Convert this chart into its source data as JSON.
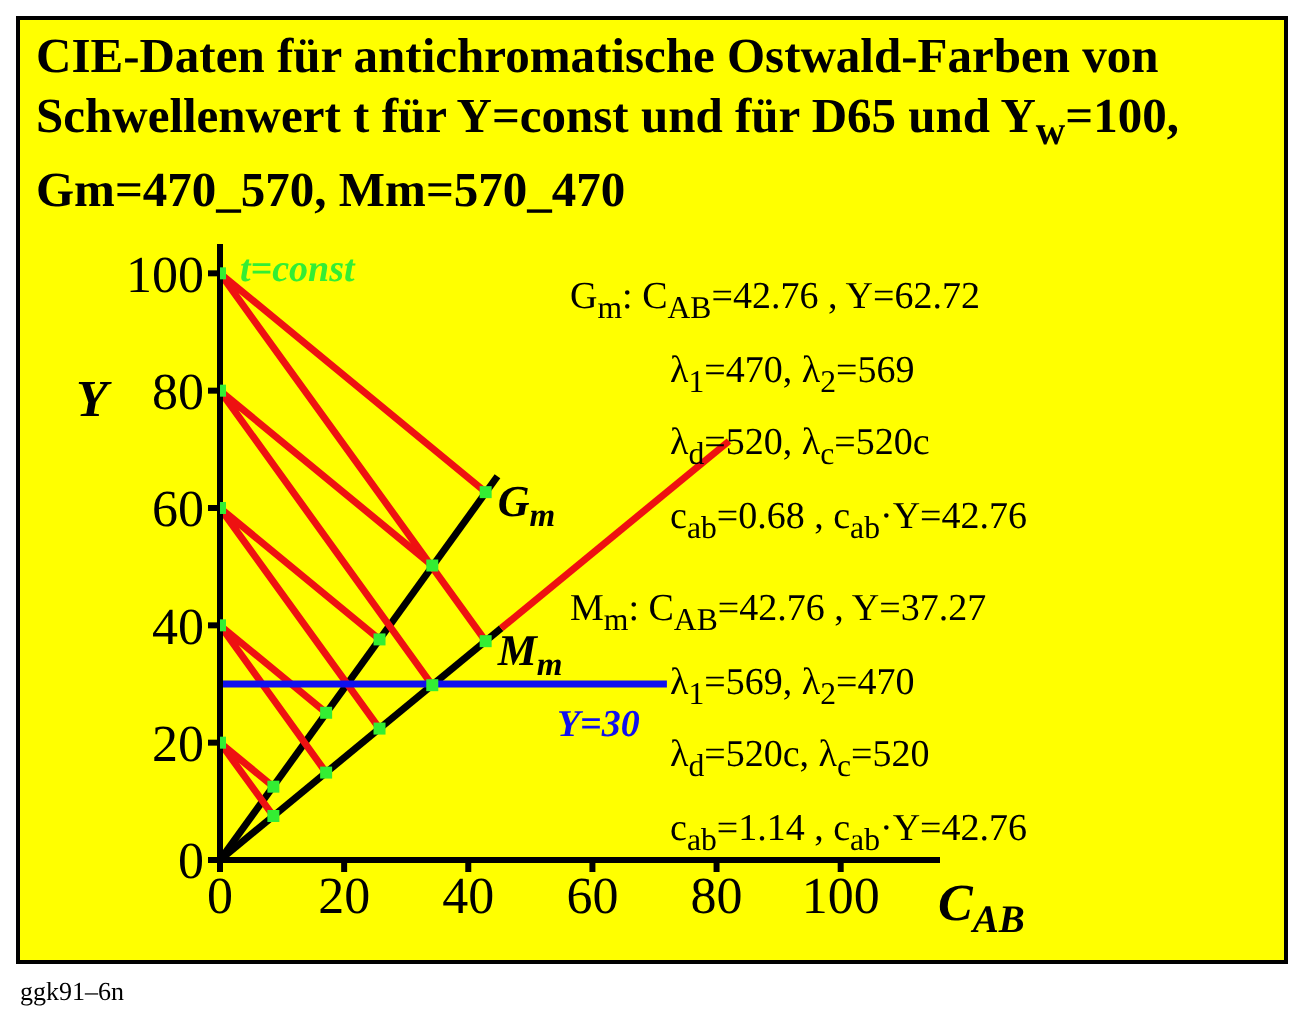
{
  "chart_data": {
    "type": "line",
    "title": "CIE-Daten für antichromatische Ostwald-Farben von Schwellenwert t für Y=const und für D65 und Y$_{w}$=100, Gm=470_570, Mm=570_470",
    "xlabel": "C$_{AB}$",
    "ylabel": "Y",
    "xlim": [
      0,
      116
    ],
    "ylim": [
      0,
      105
    ],
    "xticks": [
      0,
      20,
      40,
      60,
      80,
      100
    ],
    "yticks": [
      0,
      20,
      40,
      60,
      80,
      100
    ],
    "grid": false,
    "legend": false,
    "marker": "none",
    "line_style": "solid",
    "series": [
      {
        "color": "#000000",
        "x": [
          0,
          44.7
        ],
        "values": [
          0,
          65.4
        ]
      },
      {
        "color": "#000000",
        "x": [
          0,
          45.3
        ],
        "values": [
          0,
          39.5
        ]
      },
      {
        "color": "#ee1111",
        "x": [
          42.8,
          0,
          42.8
        ],
        "values": [
          62.7,
          100,
          37.3
        ]
      },
      {
        "color": "#ee1111",
        "x": [
          34.2,
          0,
          34.2
        ],
        "values": [
          50.2,
          80,
          29.8
        ]
      },
      {
        "color": "#ee1111",
        "x": [
          25.7,
          0,
          25.7
        ],
        "values": [
          37.6,
          60,
          22.4
        ]
      },
      {
        "color": "#ee1111",
        "x": [
          17.1,
          0,
          17.1
        ],
        "values": [
          25.1,
          40,
          14.9
        ]
      },
      {
        "color": "#ee1111",
        "x": [
          8.6,
          0,
          8.6
        ],
        "values": [
          12.5,
          20,
          7.5
        ]
      },
      {
        "color": "#ee1111",
        "x": [
          45.3,
          82
        ],
        "values": [
          39.5,
          71.4
        ]
      },
      {
        "name": "Y=30",
        "color": "#1010ee",
        "x": [
          0,
          72
        ],
        "values": [
          30,
          30
        ]
      },
      {
        "name": "t=const",
        "type": "scatter",
        "marker": "square",
        "color": "#33ee33",
        "x": [
          0,
          0,
          0,
          0,
          0,
          8.6,
          17.1,
          25.7,
          34.2,
          42.8,
          8.6,
          17.1,
          25.7,
          34.2,
          42.8
        ],
        "values": [
          20,
          40,
          60,
          80,
          100,
          12.5,
          25.1,
          37.6,
          50.2,
          62.7,
          7.5,
          14.9,
          22.4,
          29.8,
          37.3
        ]
      }
    ],
    "annotations": [
      {
        "text": "G$_{m}$",
        "x": 42.8,
        "y": 62.7
      },
      {
        "text": "M$_{m}$",
        "x": 42.8,
        "y": 37.3
      },
      "G$_{m}$: C$_{AB}$=42.76 , Y=62.72",
      "λ$_{1}$=470, λ$_{2}$=569",
      "λ$_{d}$=520, λ$_{c}$=520c",
      "c$_{ab}$=0.68 , c$_{ab}$·Y=42.76",
      "M$_{m}$: C$_{AB}$=42.76 , Y=37.27",
      "λ$_{1}$=569, λ$_{2}$=470",
      "λ$_{d}$=520c, λ$_{c}$=520",
      "c$_{ab}$=1.14 , c$_{ab}$·Y=42.76",
      "ggk91–6n"
    ]
  }
}
